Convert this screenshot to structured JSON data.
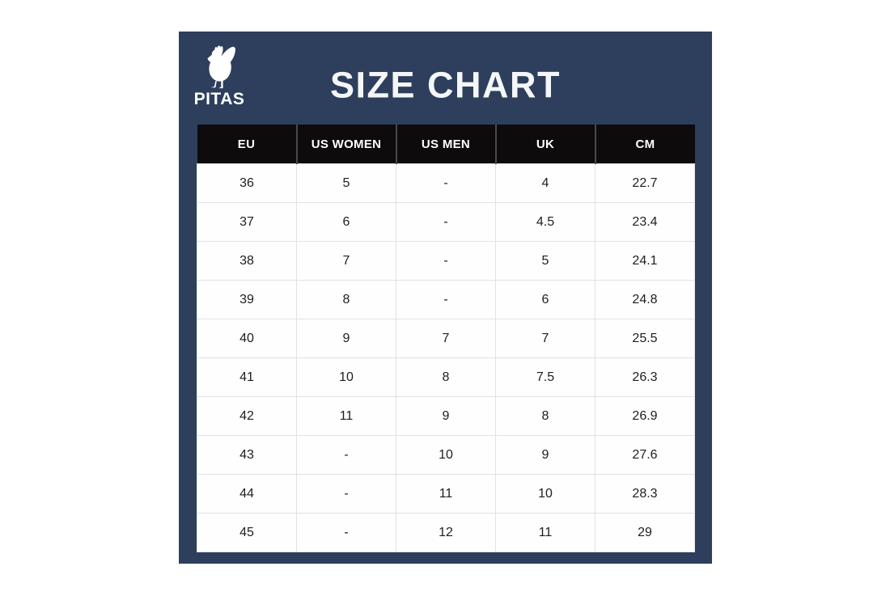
{
  "logo": {
    "text": "PITAS",
    "icon": "rooster-icon",
    "color": "#ffffff"
  },
  "chart_data": {
    "type": "table",
    "title": "SIZE CHART",
    "columns": [
      "EU",
      "US WOMEN",
      "US MEN",
      "UK",
      "CM"
    ],
    "rows": [
      [
        "36",
        "5",
        "-",
        "4",
        "22.7"
      ],
      [
        "37",
        "6",
        "-",
        "4.5",
        "23.4"
      ],
      [
        "38",
        "7",
        "-",
        "5",
        "24.1"
      ],
      [
        "39",
        "8",
        "-",
        "6",
        "24.8"
      ],
      [
        "40",
        "9",
        "7",
        "7",
        "25.5"
      ],
      [
        "41",
        "10",
        "8",
        "7.5",
        "26.3"
      ],
      [
        "42",
        "11",
        "9",
        "8",
        "26.9"
      ],
      [
        "43",
        "-",
        "10",
        "9",
        "27.6"
      ],
      [
        "44",
        "-",
        "11",
        "10",
        "28.3"
      ],
      [
        "45",
        "-",
        "12",
        "11",
        "29"
      ]
    ],
    "missing_value_marker": "-"
  },
  "colors": {
    "page_background": "#ffffff",
    "panel_navy": "#2d3f5c",
    "header_black": "#0d0b0b",
    "header_separator": "#4a4a4a",
    "grid_line": "#e2e2e2",
    "cell_text": "#1e1e1e",
    "title_text": "#f5f6f8"
  }
}
